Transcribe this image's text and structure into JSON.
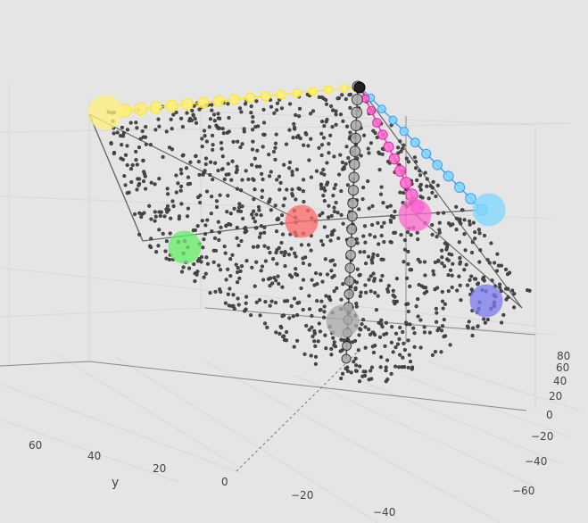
{
  "chart_data": {
    "type": "scatter3d",
    "title": "",
    "grid": true,
    "legend": "none",
    "background": "#e5e5e5",
    "axes": {
      "x": {
        "label": "",
        "ticks": [
          "−40",
          "−20",
          "0"
        ]
      },
      "y": {
        "label": "y",
        "ticks": [
          "0",
          "20",
          "40",
          "60"
        ]
      },
      "z": {
        "label": "",
        "ticks": [
          "−60",
          "−40",
          "−20",
          "0",
          "20",
          "40",
          "60",
          "80"
        ]
      }
    },
    "cloud": {
      "color": "#3c3c3c",
      "count": 1150
    },
    "series": [
      {
        "color": "#ffe600",
        "marker": "#fff07a",
        "count": 16
      },
      {
        "color": "#1e90ff",
        "marker": "#7fd8ff",
        "count": 12
      },
      {
        "color": "#e60fa0",
        "marker": "#ff6ad0",
        "count": 11
      },
      {
        "color": "#222222",
        "marker": "#aaaaaa",
        "count": 22
      }
    ],
    "highlights": [
      {
        "color": "#fff07a"
      },
      {
        "color": "#7fd8ff"
      },
      {
        "color": "#ff6ad0"
      },
      {
        "color": "#ff6a6a"
      },
      {
        "color": "#66ee66"
      },
      {
        "color": "#7b7bf0"
      },
      {
        "color": "#aaaaaa"
      }
    ]
  }
}
